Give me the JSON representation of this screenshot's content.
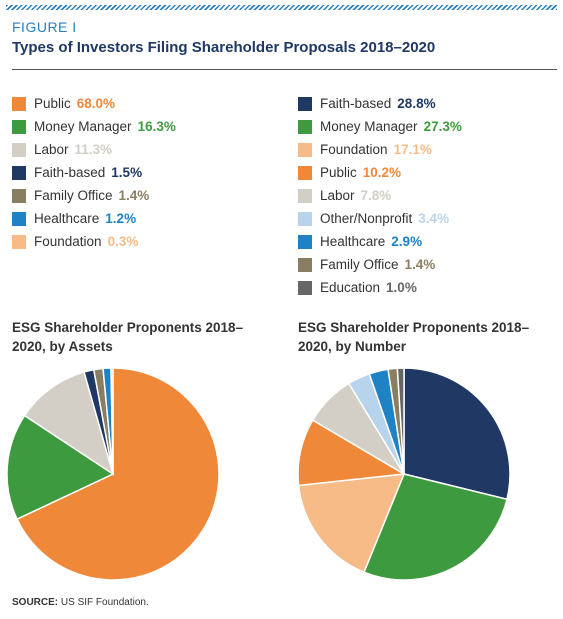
{
  "figure_label": "FIGURE I",
  "title": "Types of Investors Filing Shareholder Proposals 2018–2020",
  "source_label": "SOURCE:",
  "source": "US SIF Foundation.",
  "chart_data": [
    {
      "type": "pie",
      "title": "ESG Shareholder Proponents 2018–2020, by Assets",
      "categories": [
        "Public",
        "Money Manager",
        "Labor",
        "Faith-based",
        "Family Office",
        "Healthcare",
        "Foundation"
      ],
      "values": [
        68.0,
        16.3,
        11.3,
        1.5,
        1.4,
        1.2,
        0.3
      ],
      "value_labels": [
        "68.0%",
        "16.3%",
        "11.3%",
        "1.5%",
        "1.4%",
        "1.2%",
        "0.3%"
      ],
      "colors": [
        "#f0883a",
        "#3e9a3e",
        "#d3cfc6",
        "#1f3864",
        "#8a7e62",
        "#1f82c4",
        "#f7bb88"
      ]
    },
    {
      "type": "pie",
      "title": "ESG Shareholder Proponents 2018–2020, by Number",
      "categories": [
        "Faith-based",
        "Money Manager",
        "Foundation",
        "Public",
        "Labor",
        "Other/Nonprofit",
        "Healthcare",
        "Family Office",
        "Education"
      ],
      "values": [
        28.8,
        27.3,
        17.1,
        10.2,
        7.8,
        3.4,
        2.9,
        1.4,
        1.0
      ],
      "value_labels": [
        "28.8%",
        "27.3%",
        "17.1%",
        "10.2%",
        "7.8%",
        "3.4%",
        "2.9%",
        "1.4%",
        "1.0%"
      ],
      "colors": [
        "#1f3864",
        "#3e9a3e",
        "#f7bb88",
        "#f0883a",
        "#d3cfc6",
        "#b8d4ec",
        "#1f82c4",
        "#8a7e62",
        "#666666"
      ]
    }
  ]
}
